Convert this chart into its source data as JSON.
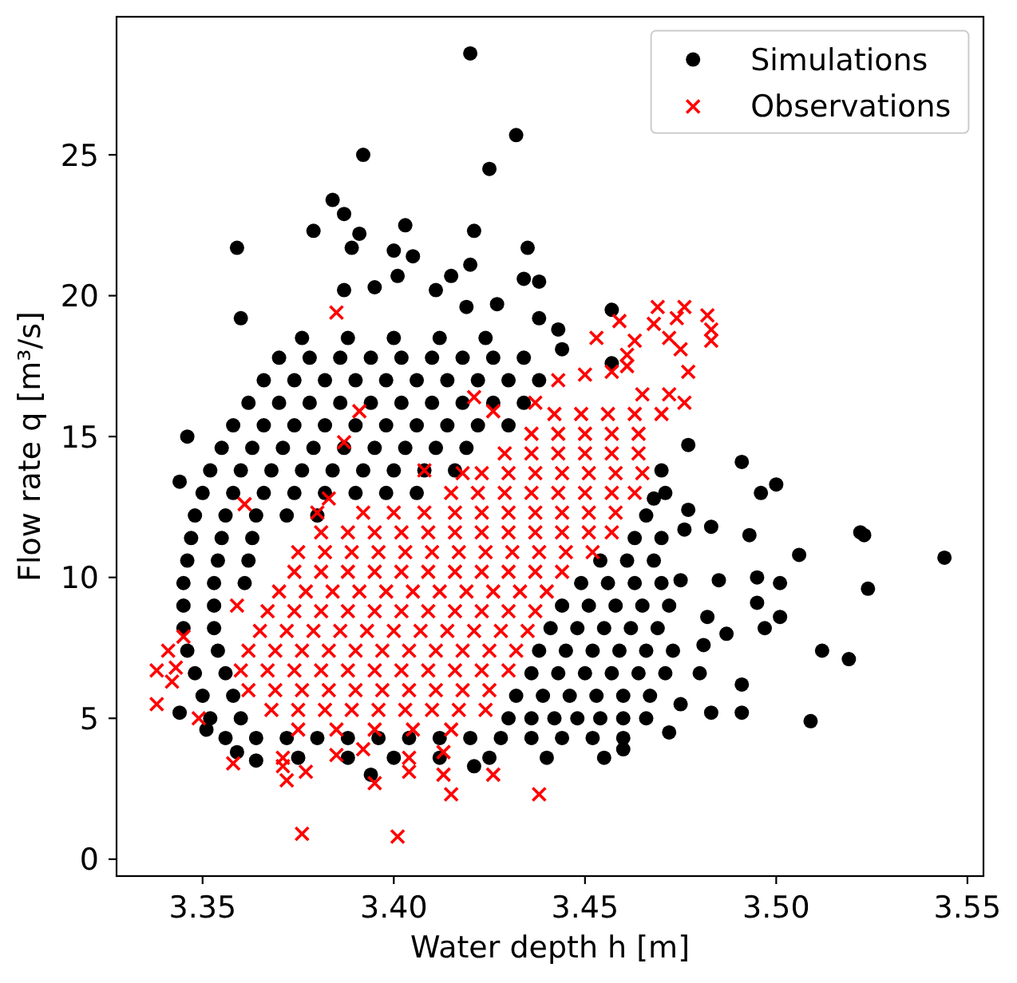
{
  "chart_data": {
    "type": "scatter",
    "xlabel": "Water depth h [m]",
    "ylabel": "Flow rate q [m³/s]",
    "xlim": [
      3.3275,
      3.5542
    ],
    "ylim": [
      -0.6,
      29.9
    ],
    "xticks": [
      3.35,
      {
        "value": 3.4,
        "label": "3.40"
      },
      3.45,
      {
        "value": 3.5,
        "label": "3.50"
      },
      3.55
    ],
    "yticks": [
      0,
      5,
      10,
      15,
      20,
      25
    ],
    "legend": "top right",
    "series": [
      {
        "name": "Simulations",
        "color": "#000000",
        "marker": "circle",
        "x": [
          3.375,
          3.388,
          3.4,
          3.412,
          3.425,
          3.44,
          3.455,
          3.356,
          3.364,
          3.372,
          3.38,
          3.388,
          3.396,
          3.404,
          3.412,
          3.42,
          3.428,
          3.436,
          3.444,
          3.452,
          3.46,
          3.352,
          3.36,
          3.43,
          3.436,
          3.442,
          3.448,
          3.454,
          3.46,
          3.466,
          3.35,
          3.358,
          3.432,
          3.439,
          3.446,
          3.453,
          3.46,
          3.467,
          3.348,
          3.356,
          3.436,
          3.443,
          3.45,
          3.457,
          3.464,
          3.471,
          3.346,
          3.354,
          3.438,
          3.445,
          3.452,
          3.459,
          3.466,
          3.473,
          3.345,
          3.353,
          3.441,
          3.448,
          3.455,
          3.462,
          3.469,
          3.345,
          3.353,
          3.444,
          3.451,
          3.458,
          3.465,
          3.472,
          3.345,
          3.353,
          3.361,
          3.449,
          3.456,
          3.463,
          3.47,
          3.346,
          3.354,
          3.362,
          3.454,
          3.461,
          3.468,
          3.347,
          3.355,
          3.363,
          3.463,
          3.47,
          3.348,
          3.356,
          3.364,
          3.372,
          3.38,
          3.466,
          3.35,
          3.358,
          3.366,
          3.374,
          3.382,
          3.39,
          3.398,
          3.406,
          3.471,
          3.352,
          3.36,
          3.368,
          3.376,
          3.384,
          3.392,
          3.4,
          3.408,
          3.416,
          3.355,
          3.363,
          3.371,
          3.379,
          3.387,
          3.395,
          3.403,
          3.411,
          3.419,
          3.358,
          3.366,
          3.374,
          3.382,
          3.39,
          3.398,
          3.406,
          3.414,
          3.422,
          3.43,
          3.362,
          3.37,
          3.378,
          3.386,
          3.394,
          3.402,
          3.41,
          3.418,
          3.426,
          3.434,
          3.366,
          3.374,
          3.382,
          3.39,
          3.398,
          3.406,
          3.414,
          3.422,
          3.43,
          3.438,
          3.37,
          3.378,
          3.386,
          3.394,
          3.402,
          3.41,
          3.418,
          3.426,
          3.434,
          3.376,
          3.388,
          3.4,
          3.412,
          3.424,
          3.42,
          3.432,
          3.425,
          3.392,
          3.384,
          3.387,
          3.379,
          3.359,
          3.391,
          3.389,
          3.403,
          3.421,
          3.435,
          3.4,
          3.405,
          3.42,
          3.434,
          3.438,
          3.415,
          3.401,
          3.395,
          3.387,
          3.411,
          3.36,
          3.419,
          3.427,
          3.438,
          3.443,
          3.457,
          3.444,
          3.457,
          3.477,
          3.491,
          3.5,
          3.496,
          3.483,
          3.493,
          3.506,
          3.522,
          3.523,
          3.544,
          3.524,
          3.501,
          3.495,
          3.495,
          3.501,
          3.497,
          3.485,
          3.482,
          3.487,
          3.481,
          3.512,
          3.519,
          3.491,
          3.483,
          3.491,
          3.509,
          3.475,
          3.46,
          3.472,
          3.48,
          3.475,
          3.47,
          3.468,
          3.477,
          3.476,
          3.346,
          3.344,
          3.344,
          3.351,
          3.359,
          3.364,
          3.394,
          3.421
        ],
        "values": [
          3.6,
          3.6,
          3.6,
          3.6,
          3.6,
          3.6,
          3.6,
          4.3,
          4.3,
          4.3,
          4.3,
          4.3,
          4.3,
          4.3,
          4.3,
          4.3,
          4.3,
          4.3,
          4.3,
          4.3,
          4.3,
          5,
          5,
          5,
          5,
          5,
          5,
          5,
          5,
          5,
          5.8,
          5.8,
          5.8,
          5.8,
          5.8,
          5.8,
          5.8,
          5.8,
          6.6,
          6.6,
          6.6,
          6.6,
          6.6,
          6.6,
          6.6,
          6.6,
          7.4,
          7.4,
          7.4,
          7.4,
          7.4,
          7.4,
          7.4,
          7.4,
          8.2,
          8.2,
          8.2,
          8.2,
          8.2,
          8.2,
          8.2,
          9,
          9,
          9,
          9,
          9,
          9,
          9,
          9.8,
          9.8,
          9.8,
          9.8,
          9.8,
          9.8,
          9.8,
          10.6,
          10.6,
          10.6,
          10.6,
          10.6,
          10.6,
          11.4,
          11.4,
          11.4,
          11.4,
          11.4,
          12.2,
          12.2,
          12.2,
          12.2,
          12.2,
          12.2,
          13,
          13,
          13,
          13,
          13,
          13,
          13,
          13,
          13,
          13.8,
          13.8,
          13.8,
          13.8,
          13.8,
          13.8,
          13.8,
          13.8,
          13.8,
          14.6,
          14.6,
          14.6,
          14.6,
          14.6,
          14.6,
          14.6,
          14.6,
          14.6,
          15.4,
          15.4,
          15.4,
          15.4,
          15.4,
          15.4,
          15.4,
          15.4,
          15.4,
          15.4,
          16.2,
          16.2,
          16.2,
          16.2,
          16.2,
          16.2,
          16.2,
          16.2,
          16.2,
          16.2,
          17,
          17,
          17,
          17,
          17,
          17,
          17,
          17,
          17,
          17,
          17.8,
          17.8,
          17.8,
          17.8,
          17.8,
          17.8,
          17.8,
          17.8,
          17.8,
          18.5,
          18.5,
          18.5,
          18.5,
          18.5,
          28.6,
          25.7,
          24.5,
          25,
          23.4,
          22.9,
          22.3,
          21.7,
          22.2,
          21.7,
          22.5,
          22.3,
          21.7,
          21.6,
          21.4,
          21.1,
          20.6,
          20.5,
          20.7,
          20.7,
          20.3,
          20.2,
          20.2,
          19.2,
          19.6,
          19.7,
          19.2,
          18.8,
          19.5,
          18.1,
          17.6,
          14.7,
          14.1,
          13.3,
          13,
          11.8,
          11.5,
          10.8,
          11.6,
          11.5,
          10.7,
          9.6,
          9.8,
          10,
          9.1,
          8.6,
          8.2,
          9.9,
          8.6,
          8,
          7.6,
          7.4,
          7.1,
          6.2,
          5.2,
          5.2,
          4.9,
          5.5,
          3.9,
          4.5,
          6.6,
          9.9,
          13.8,
          12.8,
          12.4,
          11.7,
          15,
          13.4,
          5.2,
          4.6,
          3.8,
          3.5,
          3,
          3.3
        ]
      },
      {
        "name": "Observations",
        "color": "#ff0000",
        "marker": "cross",
        "x": [
          3.375,
          3.385,
          3.395,
          3.405,
          3.415,
          3.368,
          3.375,
          3.382,
          3.389,
          3.396,
          3.403,
          3.41,
          3.417,
          3.424,
          3.362,
          3.369,
          3.376,
          3.383,
          3.39,
          3.397,
          3.404,
          3.411,
          3.418,
          3.425,
          3.36,
          3.367,
          3.374,
          3.381,
          3.388,
          3.395,
          3.402,
          3.409,
          3.416,
          3.423,
          3.43,
          3.362,
          3.369,
          3.376,
          3.383,
          3.39,
          3.397,
          3.404,
          3.411,
          3.418,
          3.425,
          3.432,
          3.365,
          3.372,
          3.379,
          3.386,
          3.393,
          3.4,
          3.407,
          3.414,
          3.421,
          3.428,
          3.435,
          3.367,
          3.374,
          3.381,
          3.388,
          3.395,
          3.402,
          3.409,
          3.416,
          3.423,
          3.43,
          3.437,
          3.37,
          3.377,
          3.384,
          3.391,
          3.398,
          3.405,
          3.412,
          3.419,
          3.426,
          3.433,
          3.44,
          3.374,
          3.381,
          3.388,
          3.395,
          3.402,
          3.409,
          3.416,
          3.423,
          3.43,
          3.437,
          3.444,
          3.375,
          3.382,
          3.389,
          3.396,
          3.403,
          3.41,
          3.417,
          3.424,
          3.431,
          3.438,
          3.445,
          3.452,
          3.381,
          3.388,
          3.395,
          3.402,
          3.409,
          3.416,
          3.423,
          3.43,
          3.437,
          3.444,
          3.451,
          3.457,
          3.392,
          3.4,
          3.408,
          3.416,
          3.423,
          3.43,
          3.437,
          3.444,
          3.451,
          3.458,
          3.415,
          3.422,
          3.429,
          3.436,
          3.443,
          3.45,
          3.457,
          3.463,
          3.423,
          3.43,
          3.437,
          3.444,
          3.451,
          3.458,
          3.465,
          3.429,
          3.436,
          3.443,
          3.45,
          3.457,
          3.464,
          3.436,
          3.443,
          3.45,
          3.457,
          3.464,
          3.442,
          3.449,
          3.456,
          3.463,
          3.47,
          3.376,
          3.401,
          3.338,
          3.338,
          3.341,
          3.345,
          3.342,
          3.343,
          3.349,
          3.358,
          3.372,
          3.371,
          3.377,
          3.395,
          3.415,
          3.426,
          3.438,
          3.413,
          3.404,
          3.387,
          3.361,
          3.359,
          3.383,
          3.38,
          3.408,
          3.418,
          3.385,
          3.469,
          3.476,
          3.482,
          3.474,
          3.468,
          3.459,
          3.483,
          3.483,
          3.453,
          3.472,
          3.475,
          3.463,
          3.461,
          3.477,
          3.461,
          3.45,
          3.443,
          3.457,
          3.472,
          3.476,
          3.465,
          3.421,
          3.426,
          3.391,
          3.437,
          3.371,
          3.385,
          3.392,
          3.404,
          3.413
        ],
        "values": [
          4.6,
          4.6,
          4.6,
          4.6,
          4.6,
          5.3,
          5.3,
          5.3,
          5.3,
          5.3,
          5.3,
          5.3,
          5.3,
          5.3,
          6,
          6,
          6,
          6,
          6,
          6,
          6,
          6,
          6,
          6,
          6.7,
          6.7,
          6.7,
          6.7,
          6.7,
          6.7,
          6.7,
          6.7,
          6.7,
          6.7,
          6.7,
          7.4,
          7.4,
          7.4,
          7.4,
          7.4,
          7.4,
          7.4,
          7.4,
          7.4,
          7.4,
          7.4,
          8.1,
          8.1,
          8.1,
          8.1,
          8.1,
          8.1,
          8.1,
          8.1,
          8.1,
          8.1,
          8.1,
          8.8,
          8.8,
          8.8,
          8.8,
          8.8,
          8.8,
          8.8,
          8.8,
          8.8,
          8.8,
          8.8,
          9.5,
          9.5,
          9.5,
          9.5,
          9.5,
          9.5,
          9.5,
          9.5,
          9.5,
          9.5,
          9.5,
          10.2,
          10.2,
          10.2,
          10.2,
          10.2,
          10.2,
          10.2,
          10.2,
          10.2,
          10.2,
          10.2,
          10.9,
          10.9,
          10.9,
          10.9,
          10.9,
          10.9,
          10.9,
          10.9,
          10.9,
          10.9,
          10.9,
          10.9,
          11.6,
          11.6,
          11.6,
          11.6,
          11.6,
          11.6,
          11.6,
          11.6,
          11.6,
          11.6,
          11.6,
          11.6,
          12.3,
          12.3,
          12.3,
          12.3,
          12.3,
          12.3,
          12.3,
          12.3,
          12.3,
          12.3,
          13,
          13,
          13,
          13,
          13,
          13,
          13,
          13,
          13.7,
          13.7,
          13.7,
          13.7,
          13.7,
          13.7,
          13.7,
          14.4,
          14.4,
          14.4,
          14.4,
          14.4,
          14.4,
          15.1,
          15.1,
          15.1,
          15.1,
          15.1,
          15.8,
          15.8,
          15.8,
          15.8,
          15.8,
          0.9,
          0.8,
          6.7,
          5.5,
          7.4,
          7.9,
          6.3,
          6.8,
          5,
          3.4,
          2.8,
          3.3,
          3.1,
          2.7,
          2.3,
          3,
          2.3,
          3,
          3.1,
          14.8,
          12.6,
          9,
          12.8,
          12.3,
          13.8,
          13.7,
          19.4,
          19.6,
          19.6,
          19.3,
          19.2,
          19,
          19.1,
          18.8,
          18.4,
          18.5,
          18.5,
          18.1,
          18.4,
          17.9,
          17.3,
          17.5,
          17.2,
          17,
          17.3,
          16.5,
          16.2,
          16.5,
          16.4,
          15.9,
          15.9,
          16.2,
          3.6,
          3.7,
          3.9,
          3.6,
          3.8
        ]
      }
    ]
  }
}
